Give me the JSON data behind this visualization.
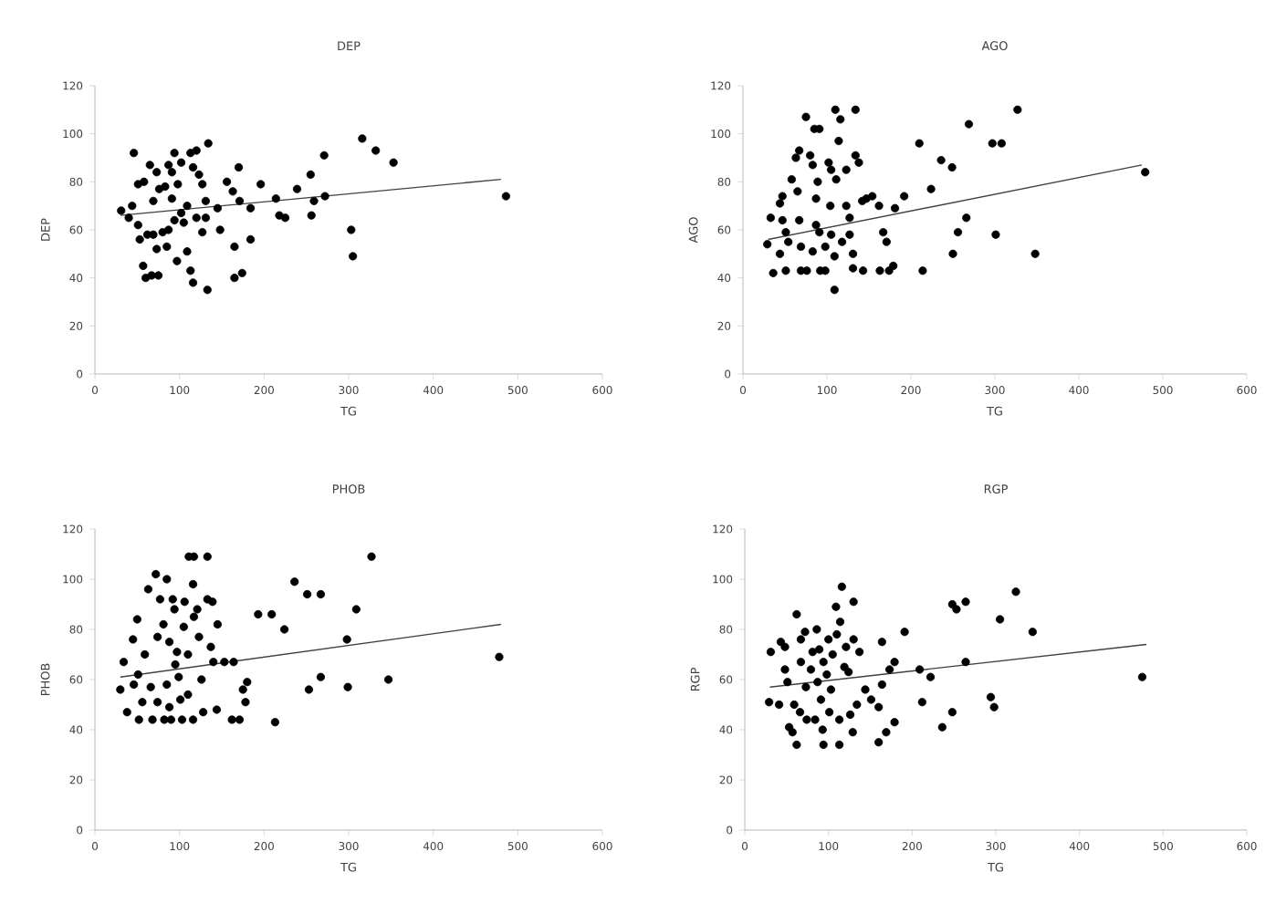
{
  "chart_data": [
    {
      "type": "scatter",
      "title": "DEP",
      "xlabel": "TG",
      "ylabel": "DEP",
      "xlim": [
        0,
        600
      ],
      "ylim": [
        0,
        120
      ],
      "xticks": [
        0,
        100,
        200,
        300,
        400,
        500,
        600
      ],
      "yticks": [
        0,
        20,
        40,
        60,
        80,
        100,
        120
      ],
      "series": [
        {
          "type": "scatter",
          "marker": "circle",
          "color": "#000000",
          "x": [
            31,
            44,
            46,
            40,
            51,
            51,
            58,
            53,
            57,
            60,
            67,
            75,
            65,
            73,
            69,
            69,
            73,
            83,
            87,
            91,
            94,
            91,
            87,
            85,
            97,
            102,
            102,
            105,
            109,
            113,
            116,
            113,
            120,
            116,
            123,
            127,
            131,
            134,
            131,
            127,
            133,
            145,
            148,
            156,
            163,
            165,
            170,
            171,
            174,
            165,
            184,
            184,
            196,
            214,
            218,
            225,
            239,
            255,
            256,
            259,
            271,
            272,
            303,
            305,
            316,
            332,
            353,
            486,
            76,
            98,
            109,
            120,
            62,
            94,
            80
          ],
          "values": [
            68,
            70,
            92,
            65,
            62,
            79,
            80,
            56,
            45,
            40,
            41,
            41,
            87,
            84,
            72,
            58,
            52,
            78,
            87,
            84,
            92,
            73,
            60,
            53,
            47,
            88,
            67,
            63,
            51,
            43,
            38,
            92,
            93,
            86,
            83,
            79,
            72,
            96,
            65,
            59,
            35,
            69,
            60,
            80,
            76,
            53,
            86,
            72,
            42,
            40,
            69,
            56,
            79,
            73,
            66,
            65,
            77,
            83,
            66,
            72,
            91,
            74,
            60,
            49,
            98,
            93,
            88,
            74,
            77,
            79,
            70,
            65,
            58,
            64,
            59
          ]
        },
        {
          "type": "line",
          "marker": "none",
          "color": "#404040",
          "x": [
            30,
            480
          ],
          "values": [
            66,
            81
          ]
        }
      ]
    },
    {
      "type": "scatter",
      "title": "AGO",
      "xlabel": "TG",
      "ylabel": "AGO",
      "xlim": [
        0,
        600
      ],
      "ylim": [
        0,
        120
      ],
      "xticks": [
        0,
        100,
        200,
        300,
        400,
        500,
        600
      ],
      "yticks": [
        0,
        20,
        40,
        60,
        80,
        100,
        120
      ],
      "series": [
        {
          "type": "scatter",
          "marker": "circle",
          "color": "#000000",
          "x": [
            29,
            33,
            36,
            44,
            47,
            44,
            47,
            51,
            54,
            51,
            58,
            63,
            67,
            65,
            67,
            69,
            69,
            76,
            75,
            80,
            83,
            83,
            85,
            91,
            89,
            87,
            87,
            91,
            92,
            98,
            98,
            102,
            105,
            104,
            105,
            109,
            109,
            110,
            111,
            114,
            116,
            118,
            123,
            123,
            127,
            127,
            131,
            131,
            134,
            134,
            138,
            142,
            143,
            147,
            154,
            162,
            167,
            163,
            171,
            174,
            179,
            181,
            192,
            210,
            214,
            224,
            236,
            249,
            250,
            256,
            266,
            269,
            297,
            301,
            308,
            327,
            348,
            479
          ],
          "values": [
            54,
            65,
            42,
            71,
            64,
            50,
            74,
            59,
            55,
            43,
            81,
            90,
            93,
            76,
            64,
            53,
            43,
            43,
            107,
            91,
            87,
            51,
            102,
            102,
            80,
            73,
            62,
            59,
            43,
            53,
            43,
            88,
            85,
            70,
            58,
            49,
            35,
            110,
            81,
            97,
            106,
            55,
            70,
            85,
            65,
            58,
            50,
            44,
            110,
            91,
            88,
            72,
            43,
            73,
            74,
            70,
            59,
            43,
            55,
            43,
            45,
            69,
            74,
            96,
            43,
            77,
            89,
            86,
            50,
            59,
            65,
            104,
            96,
            58,
            96,
            110,
            50,
            84
          ]
        },
        {
          "type": "line",
          "marker": "none",
          "color": "#404040",
          "x": [
            30,
            475
          ],
          "values": [
            56,
            87
          ]
        }
      ]
    },
    {
      "type": "scatter",
      "title": "PHOB",
      "xlabel": "TG",
      "ylabel": "PHOB",
      "xlim": [
        0,
        600
      ],
      "ylim": [
        0,
        120
      ],
      "xticks": [
        0,
        100,
        200,
        300,
        400,
        500,
        600
      ],
      "yticks": [
        0,
        20,
        40,
        60,
        80,
        100,
        120
      ],
      "series": [
        {
          "type": "scatter",
          "marker": "circle",
          "color": "#000000",
          "x": [
            30,
            34,
            38,
            45,
            46,
            50,
            51,
            52,
            56,
            59,
            63,
            66,
            68,
            72,
            74,
            74,
            77,
            81,
            82,
            85,
            85,
            88,
            88,
            90,
            92,
            94,
            95,
            97,
            99,
            101,
            103,
            105,
            106,
            110,
            110,
            111,
            116,
            117,
            116,
            117,
            121,
            123,
            126,
            128,
            133,
            133,
            139,
            137,
            140,
            145,
            144,
            153,
            164,
            162,
            171,
            175,
            178,
            180,
            193,
            209,
            213,
            224,
            236,
            251,
            253,
            267,
            267,
            298,
            299,
            309,
            327,
            347,
            478
          ],
          "values": [
            56,
            67,
            47,
            76,
            58,
            84,
            62,
            44,
            51,
            70,
            96,
            57,
            44,
            102,
            77,
            51,
            92,
            82,
            44,
            100,
            58,
            75,
            49,
            44,
            92,
            88,
            66,
            71,
            61,
            52,
            44,
            81,
            91,
            70,
            54,
            109,
            44,
            109,
            98,
            85,
            88,
            77,
            60,
            47,
            109,
            92,
            91,
            73,
            67,
            82,
            48,
            67,
            67,
            44,
            44,
            56,
            51,
            59,
            86,
            86,
            43,
            80,
            99,
            94,
            56,
            94,
            61,
            76,
            57,
            88,
            109,
            60,
            69
          ]
        },
        {
          "type": "line",
          "marker": "none",
          "color": "#404040",
          "x": [
            30,
            480
          ],
          "values": [
            61,
            82
          ]
        }
      ]
    },
    {
      "type": "scatter",
      "title": "RGP",
      "xlabel": "TG",
      "ylabel": "RGP",
      "xlim": [
        0,
        600
      ],
      "ylim": [
        0,
        120
      ],
      "xticks": [
        0,
        100,
        200,
        300,
        400,
        500,
        600
      ],
      "yticks": [
        0,
        20,
        40,
        60,
        80,
        100,
        120
      ],
      "series": [
        {
          "type": "scatter",
          "marker": "circle",
          "color": "#000000",
          "x": [
            29,
            31,
            41,
            43,
            48,
            48,
            51,
            53,
            57,
            59,
            62,
            62,
            66,
            67,
            67,
            72,
            73,
            74,
            79,
            81,
            84,
            86,
            87,
            89,
            91,
            93,
            94,
            94,
            98,
            100,
            101,
            103,
            105,
            109,
            110,
            113,
            113,
            114,
            116,
            119,
            121,
            124,
            126,
            129,
            130,
            130,
            134,
            137,
            144,
            151,
            160,
            160,
            164,
            164,
            169,
            173,
            179,
            179,
            191,
            209,
            212,
            222,
            236,
            248,
            248,
            253,
            264,
            264,
            294,
            298,
            305,
            324,
            344,
            475
          ],
          "values": [
            51,
            71,
            50,
            75,
            73,
            64,
            59,
            41,
            39,
            50,
            86,
            34,
            47,
            76,
            67,
            79,
            57,
            44,
            64,
            71,
            44,
            80,
            59,
            72,
            52,
            40,
            67,
            34,
            62,
            76,
            47,
            56,
            70,
            89,
            78,
            44,
            34,
            83,
            97,
            65,
            73,
            63,
            46,
            39,
            91,
            76,
            50,
            71,
            56,
            52,
            49,
            35,
            75,
            58,
            39,
            64,
            43,
            67,
            79,
            64,
            51,
            61,
            41,
            47,
            90,
            88,
            67,
            91,
            53,
            49,
            84,
            95,
            79,
            61
          ]
        },
        {
          "type": "line",
          "marker": "none",
          "color": "#404040",
          "x": [
            30,
            480
          ],
          "values": [
            57,
            74
          ]
        }
      ]
    }
  ]
}
